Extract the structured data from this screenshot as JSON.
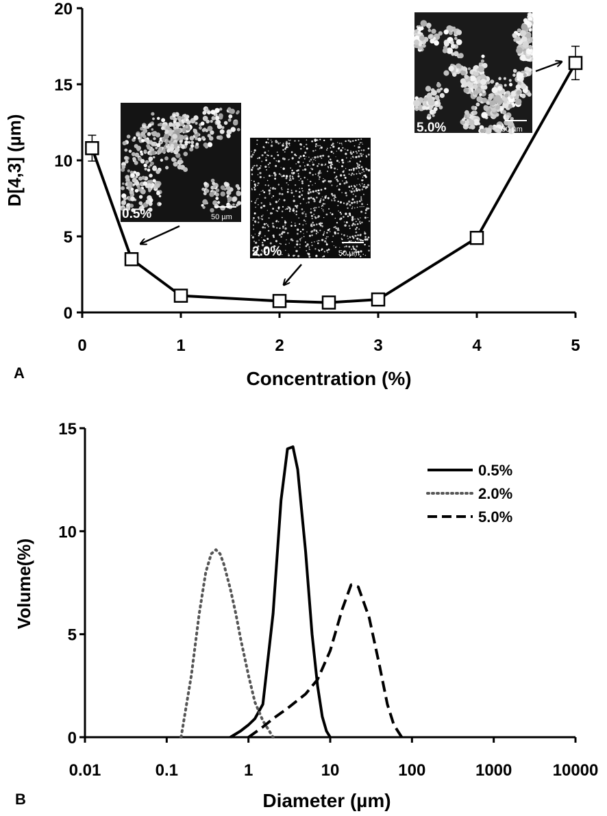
{
  "chart_data": [
    {
      "panel_label": "A",
      "type": "line",
      "xlabel": "Concentration (%)",
      "ylabel": "D[4,3] (µm)",
      "xlim": [
        0,
        5
      ],
      "ylim": [
        0,
        20
      ],
      "xticks": [
        0,
        1,
        2,
        3,
        4,
        5
      ],
      "yticks": [
        0,
        5,
        10,
        15,
        20
      ],
      "grid": false,
      "series": [
        {
          "marker": "open-square",
          "x": [
            0.1,
            0.5,
            1.0,
            2.0,
            2.5,
            3.0,
            4.0,
            5.0
          ],
          "y": [
            10.8,
            3.5,
            1.1,
            0.75,
            0.65,
            0.85,
            4.9,
            16.4
          ],
          "error": [
            0.85,
            0.2,
            0.1,
            0.05,
            0.05,
            0.1,
            0.15,
            1.1
          ]
        }
      ],
      "insets": [
        {
          "label": "0.5%",
          "scale_label": "50 µm",
          "style": "clustered-droplets",
          "points_to_x": 0.5
        },
        {
          "label": "2.0%",
          "scale_label": "50 µm",
          "style": "fine-droplets",
          "points_to_x": 2.0
        },
        {
          "label": "5.0%",
          "scale_label": "50 µm",
          "style": "network-aggregates",
          "points_to_x": 5.0
        }
      ]
    },
    {
      "panel_label": "B",
      "type": "line",
      "xlabel": "Diameter (µm)",
      "ylabel": "Volume(%)",
      "xscale": "log",
      "xlim": [
        0.01,
        10000
      ],
      "ylim": [
        0,
        15
      ],
      "xticks": [
        "0.01",
        "0.1",
        "1",
        "10",
        "100",
        "1000",
        "10000"
      ],
      "yticks": [
        0,
        5,
        10,
        15
      ],
      "grid": false,
      "legend": "top-right",
      "series": [
        {
          "name": "0.5%",
          "line_style": "solid",
          "x": [
            0.6,
            0.8,
            1.0,
            1.2,
            1.5,
            2.0,
            2.5,
            3.0,
            3.5,
            4.0,
            5.0,
            6.0,
            7.0,
            8.0,
            9.0,
            10.0
          ],
          "y": [
            0.0,
            0.3,
            0.6,
            0.9,
            1.6,
            6.0,
            11.5,
            14.0,
            14.1,
            13.0,
            9.0,
            5.0,
            2.5,
            1.0,
            0.3,
            0.0
          ]
        },
        {
          "name": "2.0%",
          "line_style": "dotted",
          "x": [
            0.15,
            0.2,
            0.25,
            0.3,
            0.35,
            0.4,
            0.45,
            0.5,
            0.6,
            0.7,
            0.8,
            1.0,
            1.2,
            1.5,
            1.8,
            2.0
          ],
          "y": [
            0.0,
            3.0,
            6.0,
            8.0,
            8.9,
            9.1,
            8.9,
            8.4,
            7.2,
            6.0,
            4.8,
            3.0,
            1.7,
            0.8,
            0.3,
            0.0
          ]
        },
        {
          "name": "5.0%",
          "line_style": "dashed",
          "x": [
            1.0,
            1.5,
            2.0,
            3.0,
            5.0,
            7.0,
            10.0,
            14.0,
            18.0,
            22.0,
            30.0,
            40.0,
            50.0,
            60.0,
            75.0
          ],
          "y": [
            0.0,
            0.5,
            0.9,
            1.4,
            2.1,
            2.8,
            4.2,
            6.2,
            7.4,
            7.3,
            5.8,
            3.5,
            1.6,
            0.6,
            0.0
          ]
        }
      ]
    }
  ]
}
